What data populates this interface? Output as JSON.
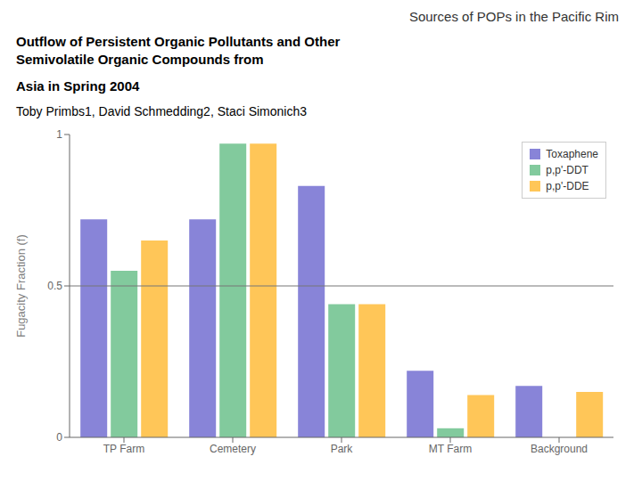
{
  "chart_data": {
    "type": "bar",
    "title": "Sources of POPs in the Pacific Rim",
    "subtitle": [
      "Outflow of Persistent Organic Pollutants and Other",
      "Semivolatile Organic Compounds from",
      "Asia in Spring 2004"
    ],
    "author": "Toby Primbs1, David Schmedding2, Staci Simonich3",
    "categories": [
      "TP Farm",
      "Cemetery",
      "Park",
      "MT Farm",
      "Background"
    ],
    "series": [
      {
        "name": "Toxaphene",
        "color": "#8884d8",
        "values": [
          0.72,
          0.72,
          0.83,
          0.22,
          0.17
        ]
      },
      {
        "name": "p,p'-DDT",
        "color": "#82ca9d",
        "values": [
          0.55,
          0.97,
          0.44,
          0.03,
          0.0
        ]
      },
      {
        "name": "p,p'-DDE",
        "color": "#ffc658",
        "values": [
          0.65,
          0.97,
          0.44,
          0.14,
          0.15
        ]
      }
    ],
    "ylabel": "Fugacity Fraction (f)",
    "ylim": [
      0,
      1.0
    ],
    "yticks": [
      0,
      0.5,
      1
    ],
    "hline": 0.5,
    "legend": "upper right",
    "grid": false
  }
}
